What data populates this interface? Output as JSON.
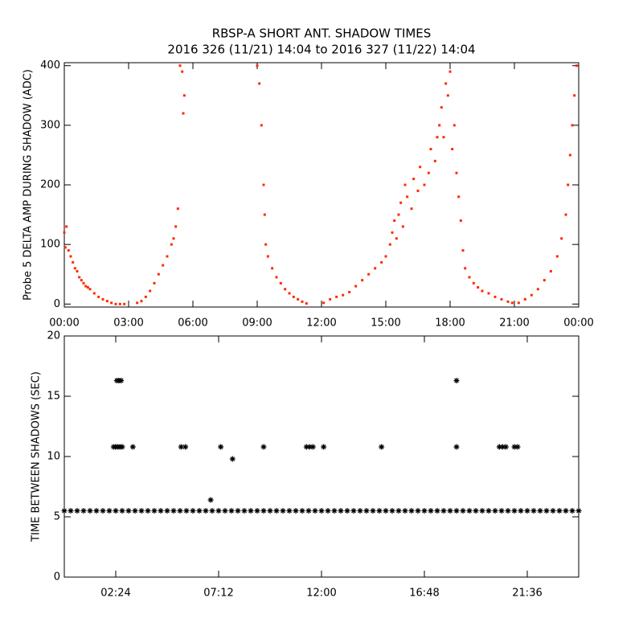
{
  "chart_data": [
    {
      "type": "scatter",
      "title": "RBSP-A SHORT ANT. SHADOW TIMES",
      "subtitle": "2016 326 (11/21) 14:04 to 2016 327 (11/22) 14:04",
      "ylabel": "Probe 5 DELTA AMP DURING SHADOW (ADC)",
      "color": "#ff2a00",
      "xlim": [
        0,
        24
      ],
      "ylim": [
        -5,
        405
      ],
      "xticks": [
        {
          "value": 0,
          "label": "00:00"
        },
        {
          "value": 3,
          "label": "03:00"
        },
        {
          "value": 6,
          "label": "06:00"
        },
        {
          "value": 9,
          "label": "09:00"
        },
        {
          "value": 12,
          "label": "12:00"
        },
        {
          "value": 15,
          "label": "15:00"
        },
        {
          "value": 18,
          "label": "18:00"
        },
        {
          "value": 21,
          "label": "21:00"
        },
        {
          "value": 24,
          "label": "00:00"
        }
      ],
      "yticks": [
        0,
        100,
        200,
        300,
        400
      ],
      "x": [
        0.0,
        0.05,
        0.1,
        0.2,
        0.3,
        0.4,
        0.5,
        0.6,
        0.7,
        0.8,
        0.9,
        1.0,
        1.1,
        1.2,
        1.4,
        1.6,
        1.8,
        2.0,
        2.2,
        2.4,
        2.6,
        2.8,
        3.4,
        3.6,
        3.8,
        4.0,
        4.2,
        4.4,
        4.6,
        4.8,
        5.0,
        5.1,
        5.2,
        5.3,
        5.4,
        5.5,
        5.6,
        5.55,
        9.0,
        9.1,
        9.2,
        9.3,
        9.35,
        9.4,
        9.5,
        9.7,
        9.9,
        10.1,
        10.3,
        10.5,
        10.7,
        10.9,
        11.1,
        11.3,
        12.1,
        12.4,
        12.7,
        13.0,
        13.3,
        13.6,
        13.9,
        14.2,
        14.5,
        14.8,
        15.0,
        15.2,
        15.3,
        15.4,
        15.5,
        15.6,
        15.7,
        15.8,
        15.9,
        16.0,
        16.2,
        16.3,
        16.5,
        16.6,
        16.8,
        17.0,
        17.1,
        17.3,
        17.4,
        17.5,
        17.6,
        17.7,
        17.8,
        17.9,
        18.0,
        18.1,
        18.2,
        18.3,
        18.4,
        18.5,
        18.6,
        18.7,
        18.9,
        19.1,
        19.3,
        19.5,
        19.8,
        20.1,
        20.4,
        20.7,
        20.9,
        21.2,
        21.5,
        21.8,
        22.1,
        22.4,
        22.7,
        23.0,
        23.2,
        23.4,
        23.5,
        23.6,
        23.7,
        23.8,
        23.9
      ],
      "values": [
        120,
        95,
        130,
        90,
        80,
        70,
        60,
        55,
        45,
        40,
        35,
        30,
        28,
        25,
        18,
        12,
        8,
        5,
        2,
        0,
        0,
        0,
        2,
        5,
        12,
        22,
        35,
        50,
        65,
        80,
        100,
        110,
        130,
        160,
        400,
        390,
        350,
        320,
        400,
        370,
        300,
        200,
        150,
        100,
        80,
        60,
        45,
        35,
        25,
        18,
        12,
        8,
        4,
        1,
        2,
        8,
        12,
        15,
        20,
        30,
        40,
        50,
        60,
        70,
        80,
        100,
        120,
        140,
        110,
        150,
        170,
        130,
        200,
        180,
        160,
        210,
        190,
        230,
        200,
        220,
        260,
        240,
        280,
        300,
        330,
        280,
        370,
        350,
        390,
        260,
        300,
        220,
        180,
        140,
        90,
        60,
        45,
        35,
        28,
        22,
        18,
        12,
        8,
        4,
        2,
        2,
        8,
        15,
        25,
        40,
        55,
        80,
        110,
        150,
        200,
        250,
        300,
        350,
        400
      ]
    },
    {
      "type": "scatter",
      "ylabel": "TIME BETWEEN SHADOWS (SEC)",
      "color": "#000000",
      "xlim": [
        0,
        24
      ],
      "ylim": [
        0,
        20
      ],
      "xticks": [
        {
          "value": 2.4,
          "label": "02:24"
        },
        {
          "value": 7.2,
          "label": "07:12"
        },
        {
          "value": 12,
          "label": "12:00"
        },
        {
          "value": 16.8,
          "label": "16:48"
        },
        {
          "value": 21.6,
          "label": "21:36"
        }
      ],
      "yticks": [
        0,
        5,
        10,
        15,
        20
      ],
      "x": [
        2.3,
        2.4,
        2.5,
        2.6,
        2.7,
        2.45,
        2.55,
        2.65,
        3.2,
        5.45,
        5.65,
        6.83,
        7.3,
        7.85,
        9.3,
        11.3,
        11.45,
        11.6,
        12.1,
        14.8,
        18.3,
        18.3,
        20.3,
        20.45,
        20.6,
        21.0,
        21.15,
        0.0,
        0.3,
        0.6,
        0.9,
        1.2,
        1.5,
        1.8,
        2.1,
        2.4,
        2.7,
        3.0,
        3.3,
        3.6,
        3.9,
        4.2,
        4.5,
        4.8,
        5.1,
        5.4,
        5.7,
        6.0,
        6.3,
        6.6,
        6.9,
        7.2,
        7.5,
        7.8,
        8.1,
        8.4,
        8.7,
        9.0,
        9.3,
        9.6,
        9.9,
        10.2,
        10.5,
        10.8,
        11.1,
        11.4,
        11.7,
        12.0,
        12.3,
        12.6,
        12.9,
        13.2,
        13.5,
        13.8,
        14.1,
        14.4,
        14.7,
        15.0,
        15.3,
        15.6,
        15.9,
        16.2,
        16.5,
        16.8,
        17.1,
        17.4,
        17.7,
        18.0,
        18.3,
        18.6,
        18.9,
        19.2,
        19.5,
        19.8,
        20.1,
        20.4,
        20.7,
        21.0,
        21.3,
        21.6,
        21.9,
        22.2,
        22.5,
        22.8,
        23.1,
        23.4,
        23.7,
        24.0
      ],
      "values": [
        10.8,
        10.8,
        10.8,
        10.8,
        10.8,
        16.3,
        16.3,
        16.3,
        10.8,
        10.8,
        10.8,
        6.4,
        10.8,
        9.8,
        10.8,
        10.8,
        10.8,
        10.8,
        10.8,
        10.8,
        10.8,
        16.3,
        10.8,
        10.8,
        10.8,
        10.8,
        10.8,
        5.5,
        5.5,
        5.5,
        5.5,
        5.5,
        5.5,
        5.5,
        5.5,
        5.5,
        5.5,
        5.5,
        5.5,
        5.5,
        5.5,
        5.5,
        5.5,
        5.5,
        5.5,
        5.5,
        5.5,
        5.5,
        5.5,
        5.5,
        5.5,
        5.5,
        5.5,
        5.5,
        5.5,
        5.5,
        5.5,
        5.5,
        5.5,
        5.5,
        5.5,
        5.5,
        5.5,
        5.5,
        5.5,
        5.5,
        5.5,
        5.5,
        5.5,
        5.5,
        5.5,
        5.5,
        5.5,
        5.5,
        5.5,
        5.5,
        5.5,
        5.5,
        5.5,
        5.5,
        5.5,
        5.5,
        5.5,
        5.5,
        5.5,
        5.5,
        5.5,
        5.5,
        5.5,
        5.5,
        5.5,
        5.5,
        5.5,
        5.5,
        5.5,
        5.5,
        5.5,
        5.5,
        5.5,
        5.5,
        5.5,
        5.5,
        5.5,
        5.5,
        5.5,
        5.5,
        5.5,
        5.5
      ]
    }
  ]
}
